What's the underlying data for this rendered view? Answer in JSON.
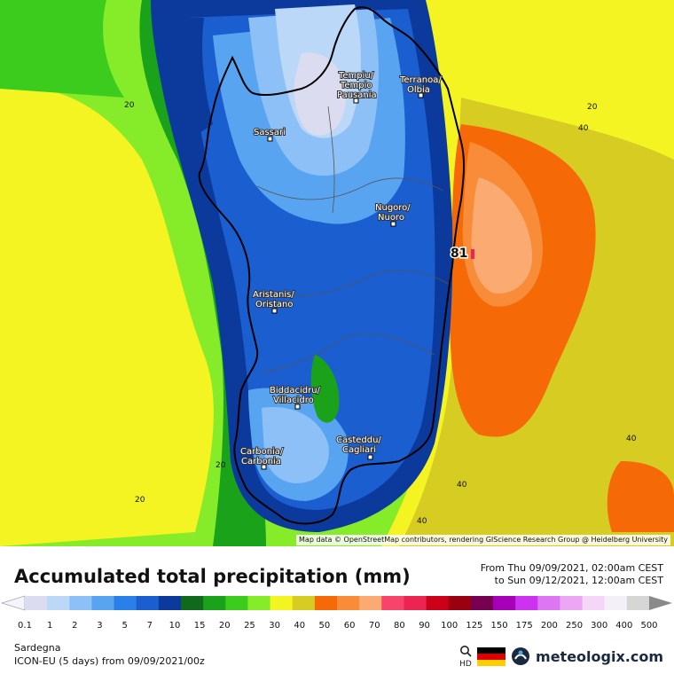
{
  "region": "Sardegna",
  "model_run": "ICON-EU (5 days) from 09/09/2021/00z",
  "legend": {
    "title": "Accumulated total precipitation (mm)",
    "from": "From Thu 09/09/2021, 02:00am CEST",
    "to": "to Sun 09/12/2021, 12:00am CEST",
    "colors": [
      "#dcdcf0",
      "#bcd8f8",
      "#8cc0f6",
      "#58a4f0",
      "#2a80e8",
      "#1a5ed0",
      "#0c3a9c",
      "#0f6a1e",
      "#1aa21a",
      "#3ccc1e",
      "#86ec2a",
      "#f4f422",
      "#d6cc22",
      "#f56a06",
      "#f88c38",
      "#fbaa72",
      "#f8446a",
      "#ec2452",
      "#cc0018",
      "#9a0010",
      "#760052",
      "#a600b8",
      "#cc32f0",
      "#dd76f2",
      "#eca6f4",
      "#f6d6f8",
      "#f4f0f8",
      "#d6d6d6"
    ],
    "labels": [
      "0.1",
      "1",
      "2",
      "3",
      "5",
      "7",
      "10",
      "15",
      "20",
      "25",
      "30",
      "40",
      "50",
      "60",
      "70",
      "80",
      "90",
      "100",
      "125",
      "150",
      "175",
      "200",
      "250",
      "300",
      "400",
      "500"
    ]
  },
  "map": {
    "attribution": "Map data © OpenStreetMap contributors, rendering GIScience Research Group @ Heidelberg University",
    "max_value": "81",
    "cities": [
      {
        "line1": "Tempiu/",
        "line2": "Tempio",
        "line3": "Pausania"
      },
      {
        "line1": "Terranoa/",
        "line2": "Olbia",
        "line3": ""
      },
      {
        "line1": "Sassari",
        "line2": "",
        "line3": ""
      },
      {
        "line1": "Nugoro/",
        "line2": "Nuoro",
        "line3": ""
      },
      {
        "line1": "Aristanis/",
        "line2": "Oristano",
        "line3": ""
      },
      {
        "line1": "Biddacidru/",
        "line2": "Villacidro",
        "line3": ""
      },
      {
        "line1": "Casteddu/",
        "line2": "Cagliari",
        "line3": ""
      },
      {
        "line1": "Carbonia/",
        "line2": "Carbonia",
        "line3": ""
      }
    ],
    "isolines": [
      "20",
      "40",
      "20",
      "40",
      "40",
      "40",
      "20",
      "20"
    ]
  },
  "brand": {
    "name": "meteologix.com",
    "hd": "HD",
    "flag_colors": [
      "#000000",
      "#dd0000",
      "#ffce00"
    ],
    "accent": "#1a2940"
  }
}
